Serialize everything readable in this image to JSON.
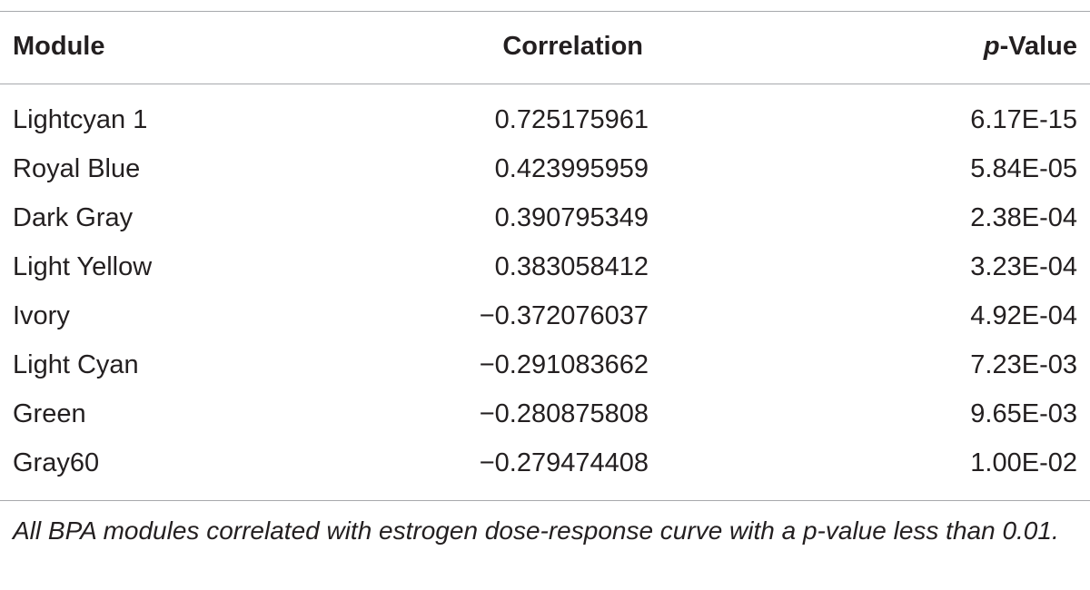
{
  "table": {
    "headers": {
      "module": "Module",
      "correlation": "Correlation",
      "pvalue_italic": "p",
      "pvalue_rest": "-Value"
    },
    "rows": [
      {
        "module": "Lightcyan 1",
        "correlation": "0.725175961",
        "pvalue": "6.17E-15"
      },
      {
        "module": "Royal Blue",
        "correlation": "0.423995959",
        "pvalue": "5.84E-05"
      },
      {
        "module": "Dark Gray",
        "correlation": "0.390795349",
        "pvalue": "2.38E-04"
      },
      {
        "module": "Light Yellow",
        "correlation": "0.383058412",
        "pvalue": "3.23E-04"
      },
      {
        "module": "Ivory",
        "correlation": "−0.372076037",
        "pvalue": "4.92E-04"
      },
      {
        "module": "Light Cyan",
        "correlation": "−0.291083662",
        "pvalue": "7.23E-03"
      },
      {
        "module": "Green",
        "correlation": "−0.280875808",
        "pvalue": "9.65E-03"
      },
      {
        "module": "Gray60",
        "correlation": "−0.279474408",
        "pvalue": "1.00E-02"
      }
    ],
    "footnote": "All BPA modules correlated with estrogen dose-response curve with a p-value less than 0.01."
  }
}
